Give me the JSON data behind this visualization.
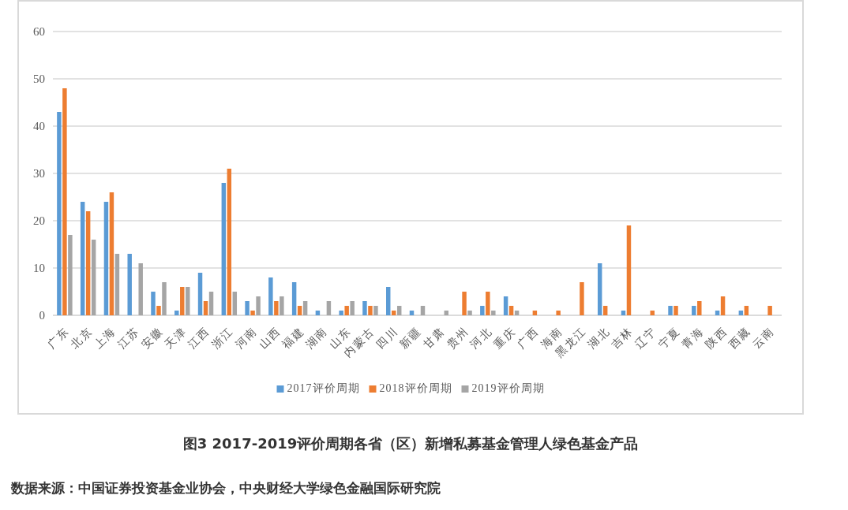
{
  "chart_data": {
    "type": "bar",
    "title": "图3 2017-2019评价周期各省（区）新增私募基金管理人绿色基金产品",
    "annotations": [
      "数据来源：中国证券投资基金业协会，中央财经大学绿色金融国际研究院"
    ],
    "categories": [
      "广东",
      "北京",
      "上海",
      "江苏",
      "安徽",
      "天津",
      "江西",
      "浙江",
      "河南",
      "山西",
      "福建",
      "湖南",
      "山东",
      "内蒙古",
      "四川",
      "新疆",
      "甘肃",
      "贵州",
      "河北",
      "重庆",
      "广西",
      "海南",
      "黑龙江",
      "湖北",
      "吉林",
      "辽宁",
      "宁夏",
      "青海",
      "陕西",
      "西藏",
      "云南"
    ],
    "series": [
      {
        "name": "2017评价周期",
        "color": "#5b9bd5",
        "values": [
          43,
          24,
          24,
          13,
          5,
          1,
          9,
          28,
          3,
          8,
          7,
          1,
          1,
          3,
          6,
          1,
          null,
          null,
          2,
          4,
          null,
          null,
          null,
          11,
          1,
          null,
          2,
          2,
          1,
          1,
          null
        ]
      },
      {
        "name": "2018评价周期",
        "color": "#ed7d31",
        "values": [
          48,
          22,
          26,
          null,
          2,
          6,
          3,
          31,
          1,
          3,
          2,
          null,
          2,
          2,
          1,
          null,
          null,
          5,
          5,
          2,
          1,
          1,
          7,
          2,
          19,
          1,
          2,
          3,
          4,
          2,
          2
        ]
      },
      {
        "name": "2019评价周期",
        "color": "#a5a5a5",
        "values": [
          17,
          16,
          13,
          11,
          7,
          6,
          5,
          5,
          4,
          4,
          3,
          3,
          3,
          2,
          2,
          2,
          1,
          1,
          1,
          1,
          null,
          null,
          null,
          null,
          null,
          null,
          null,
          null,
          null,
          null,
          null
        ]
      }
    ],
    "ylim": [
      0,
      60
    ],
    "yticks": [
      0,
      10,
      20,
      30,
      40,
      50,
      60
    ],
    "grid": "y",
    "legend": "bottom"
  }
}
